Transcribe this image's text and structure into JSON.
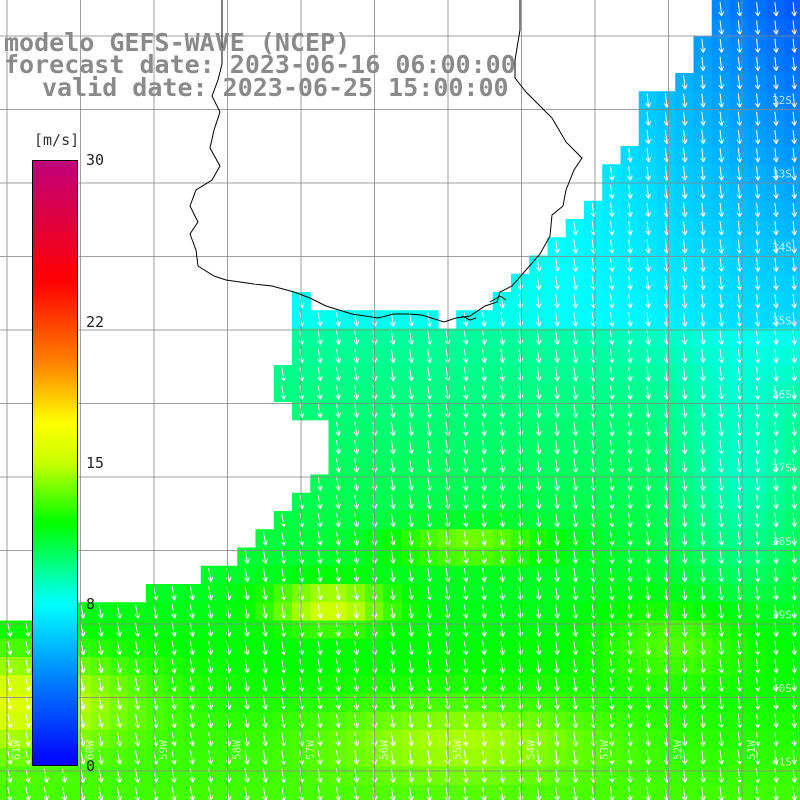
{
  "title": {
    "line1": "modelo GEFS-WAVE (NCEP)",
    "line2": "forecast date: 2023-06-16 06:00:00",
    "line3": "valid date: 2023-06-25 15:00:00"
  },
  "colorbar": {
    "unit": "[m/s]",
    "min": 0,
    "max": 30,
    "ticks": [
      {
        "value": 30,
        "label": "30"
      },
      {
        "value": 22,
        "label": "22"
      },
      {
        "value": 15,
        "label": "15"
      },
      {
        "value": 8,
        "label": "8"
      },
      {
        "value": 0,
        "label": "0"
      }
    ],
    "gradient": [
      {
        "value": 0,
        "color": "#0000ff"
      },
      {
        "value": 4,
        "color": "#0078ff"
      },
      {
        "value": 8,
        "color": "#00ffff"
      },
      {
        "value": 12,
        "color": "#00ff00"
      },
      {
        "value": 15,
        "color": "#c8ff00"
      },
      {
        "value": 17,
        "color": "#ffff00"
      },
      {
        "value": 20,
        "color": "#ff8000"
      },
      {
        "value": 24,
        "color": "#ff0000"
      },
      {
        "value": 30,
        "color": "#c0007a"
      }
    ]
  },
  "map": {
    "region": {
      "lon_min": -61,
      "lon_max": -50.25,
      "lat_min": -41.75,
      "lat_max": -31.25
    },
    "grid_step_deg": 0.5,
    "lat_labels": [
      "32S",
      "33S",
      "34S",
      "35S",
      "36S",
      "37S",
      "38S",
      "39S",
      "40S",
      "41S"
    ],
    "lon_labels": [
      "61W",
      "60W",
      "59W",
      "58W",
      "57W",
      "56W",
      "55W",
      "54W",
      "53W",
      "52W",
      "51W"
    ],
    "wind_direction": "from north-northwest",
    "land_color": "#ffffff",
    "coast_color": "#000000",
    "grid_color": "#888888"
  }
}
